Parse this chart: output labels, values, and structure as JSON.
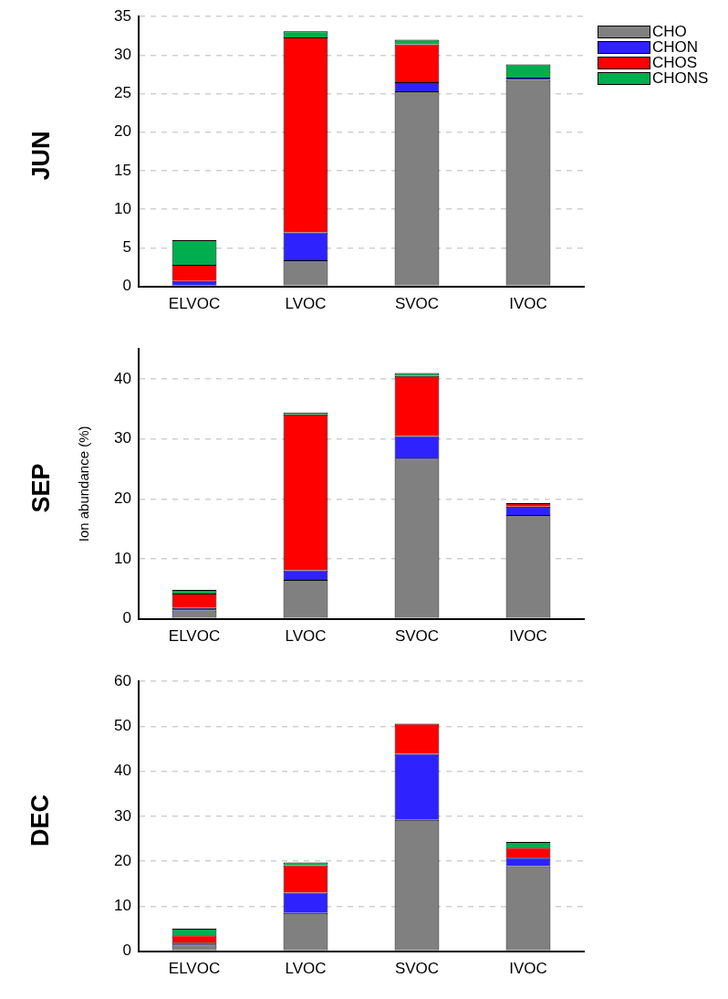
{
  "chart_data": [
    {
      "type": "bar",
      "title": "JUN",
      "stacked": true,
      "grid": "y",
      "legend": "top right",
      "categories": [
        "ELVOC",
        "LVOC",
        "SVOC",
        "IVOC"
      ],
      "series": [
        {
          "name": "CHO",
          "color": "#808080",
          "values": [
            0.2,
            3.4,
            25.3,
            26.8
          ]
        },
        {
          "name": "CHON",
          "color": "#2e22ff",
          "values": [
            0.5,
            3.6,
            1.2,
            0.3
          ]
        },
        {
          "name": "CHOS",
          "color": "#ff0000",
          "values": [
            2.1,
            25.3,
            4.9,
            null
          ]
        },
        {
          "name": "CHONS",
          "color": "#00ad4f",
          "values": [
            3.2,
            0.8,
            0.6,
            1.7
          ]
        }
      ],
      "ylim": [
        0,
        35
      ],
      "yticks": [
        0,
        5,
        10,
        15,
        20,
        25,
        30,
        35
      ]
    },
    {
      "type": "bar",
      "title": "SEP",
      "ylabel": "Ion abundance (%)",
      "stacked": true,
      "grid": "y",
      "categories": [
        "ELVOC",
        "LVOC",
        "SVOC",
        "IVOC"
      ],
      "series": [
        {
          "color": "#808080",
          "values": [
            1.4,
            6.5,
            26.7,
            17.3
          ]
        },
        {
          "color": "#2e22ff",
          "values": [
            0.4,
            1.6,
            3.8,
            1.4
          ]
        },
        {
          "color": "#ff0000",
          "values": [
            2.4,
            26.0,
            10.0,
            0.6
          ]
        },
        {
          "color": "#00ad4f",
          "values": [
            0.6,
            0.3,
            0.5,
            null
          ]
        }
      ],
      "ylim": [
        0,
        45
      ],
      "yticks": [
        0,
        10,
        20,
        30,
        40
      ]
    },
    {
      "type": "bar",
      "title": "DEC",
      "stacked": true,
      "grid": "y",
      "categories": [
        "ELVOC",
        "LVOC",
        "SVOC",
        "IVOC"
      ],
      "series": [
        {
          "color": "#808080",
          "values": [
            1.5,
            8.5,
            29.2,
            18.9
          ]
        },
        {
          "color": "#2e22ff",
          "values": [
            0.4,
            4.5,
            14.7,
            1.9
          ]
        },
        {
          "color": "#ff0000",
          "values": [
            1.6,
            6.1,
            6.7,
            2.2
          ]
        },
        {
          "color": "#00ad4f",
          "values": [
            1.5,
            0.6,
            null,
            1.3
          ]
        }
      ],
      "ylim": [
        0,
        60
      ],
      "yticks": [
        0,
        10,
        20,
        30,
        40,
        50,
        60
      ]
    }
  ]
}
